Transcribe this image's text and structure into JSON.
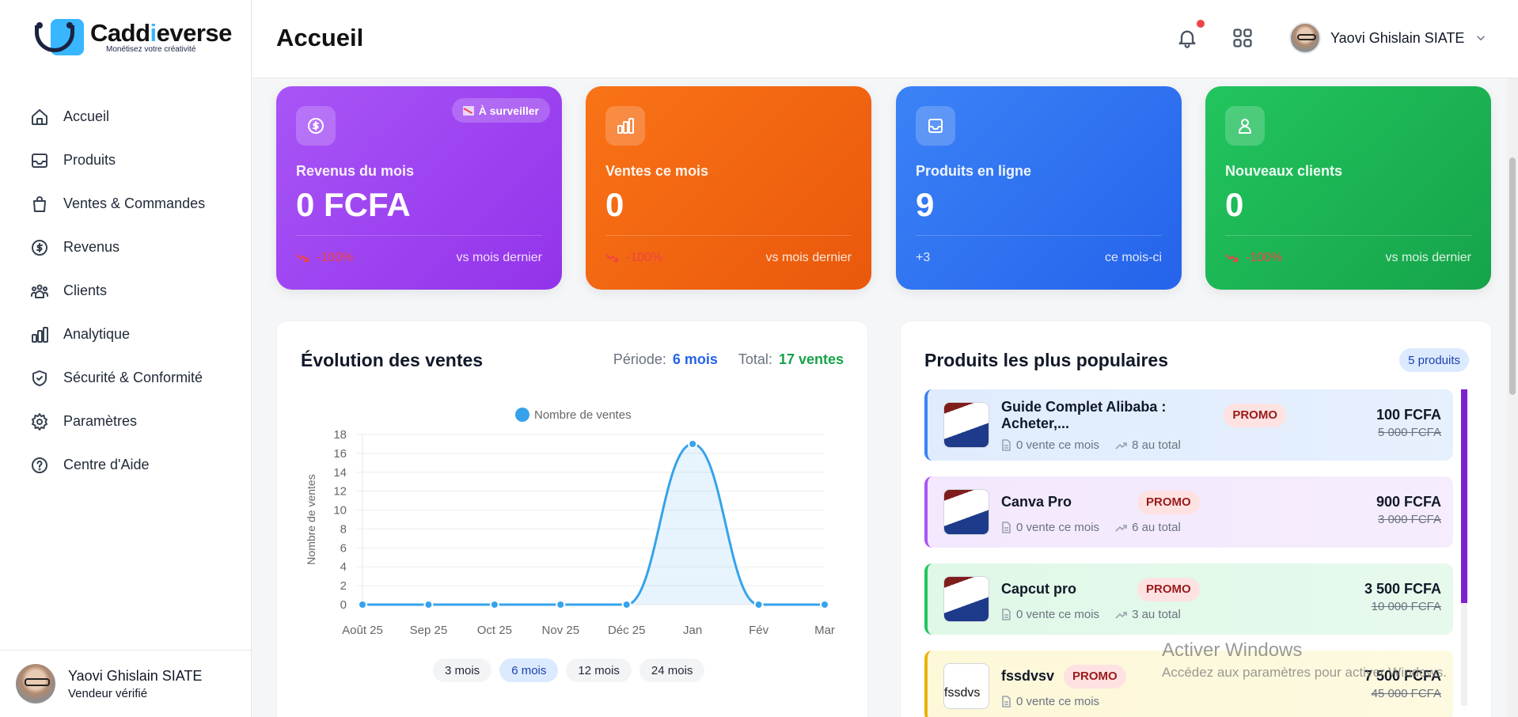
{
  "app": {
    "brand": "Caddieverse",
    "brand_pre": "Cadd",
    "brand_i": "i",
    "brand_post": "everse",
    "tagline": "Monétisez votre créativité"
  },
  "sidebar": {
    "items": [
      {
        "label": "Accueil",
        "icon": "home-icon"
      },
      {
        "label": "Produits",
        "icon": "inbox-icon"
      },
      {
        "label": "Ventes & Commandes",
        "icon": "shopping-bag-icon"
      },
      {
        "label": "Revenus",
        "icon": "dollar-circle-icon"
      },
      {
        "label": "Clients",
        "icon": "users-icon"
      },
      {
        "label": "Analytique",
        "icon": "bar-chart-icon"
      },
      {
        "label": "Sécurité & Conformité",
        "icon": "shield-check-icon"
      },
      {
        "label": "Paramètres",
        "icon": "gear-icon"
      },
      {
        "label": "Centre d'Aide",
        "icon": "help-circle-icon"
      }
    ],
    "user": {
      "name": "Yaovi Ghislain SIATE",
      "role": "Vendeur vérifié"
    }
  },
  "header": {
    "title": "Accueil",
    "user_name": "Yaovi Ghislain SIATE",
    "notification_dot": true
  },
  "stats": [
    {
      "label": "Revenus du mois",
      "value": "0 FCFA",
      "trend": "-100%",
      "compare": "vs mois dernier",
      "badge": "À surveiller",
      "color": "#a855f7",
      "icon": "dollar-circle-icon"
    },
    {
      "label": "Ventes ce mois",
      "value": "0",
      "trend": "-100%",
      "compare": "vs mois dernier",
      "color": "#f97316",
      "icon": "bar-chart-icon"
    },
    {
      "label": "Produits en ligne",
      "value": "9",
      "trend": "+3",
      "compare": "ce mois-ci",
      "color": "#3b82f6",
      "icon": "inbox-icon"
    },
    {
      "label": "Nouveaux clients",
      "value": "0",
      "trend": "-100%",
      "compare": "vs mois dernier",
      "color": "#22c55e",
      "icon": "user-icon"
    }
  ],
  "sales_chart": {
    "title": "Évolution des ventes",
    "period_label": "Période:",
    "period_value": "6 mois",
    "total_label": "Total:",
    "total_value": "17 ventes",
    "periods": [
      "3 mois",
      "6 mois",
      "12 mois",
      "24 mois"
    ],
    "active_period": "6 mois"
  },
  "chart_data": {
    "type": "line",
    "title": "",
    "legend": [
      "Nombre de ventes"
    ],
    "legend_position": "top",
    "categories": [
      "Août 25",
      "Sep 25",
      "Oct 25",
      "Nov 25",
      "Déc 25",
      "Jan",
      "Fév",
      "Mar"
    ],
    "series": [
      {
        "name": "Nombre de ventes",
        "values": [
          0,
          0,
          0,
          0,
          0,
          17,
          0,
          0
        ],
        "color": "#36a2eb"
      }
    ],
    "xlabel": "",
    "ylabel": "Nombre de ventes",
    "ylim": [
      0,
      18
    ],
    "yticks": [
      0,
      2,
      4,
      6,
      8,
      10,
      12,
      14,
      16,
      18
    ],
    "grid": true,
    "fill": true
  },
  "popular_products": {
    "title": "Produits les plus populaires",
    "count_badge": "5 produits",
    "items": [
      {
        "name": "Guide Complet Alibaba : Acheter,...",
        "badge": "PROMO",
        "month_sales": "0 vente ce mois",
        "total": "8 au total",
        "price": "100 FCFA",
        "old_price": "5 000 FCFA",
        "accent": "#3b82f6",
        "bg": "#e0ecfd"
      },
      {
        "name": "Canva Pro",
        "badge": "PROMO",
        "month_sales": "0 vente ce mois",
        "total": "6 au total",
        "price": "900 FCFA",
        "old_price": "3 000 FCFA",
        "accent": "#a855f7",
        "bg": "#f3e8fd"
      },
      {
        "name": "Capcut pro",
        "badge": "PROMO",
        "month_sales": "0 vente ce mois",
        "total": "3 au total",
        "price": "3 500 FCFA",
        "old_price": "10 000 FCFA",
        "accent": "#22c55e",
        "bg": "#e0f8e8"
      },
      {
        "name": "fssdvsv",
        "badge": "PROMO",
        "month_sales": "0 vente ce mois",
        "total": "",
        "price": "7 500 FCFA",
        "old_price": "45 000 FCFA",
        "accent": "#eab308",
        "bg": "#fdf8d8",
        "thumb_alt": "fssdvs"
      }
    ]
  },
  "os_watermark": {
    "title": "Activer Windows",
    "subtitle": "Accédez aux paramètres pour activer Windows."
  }
}
